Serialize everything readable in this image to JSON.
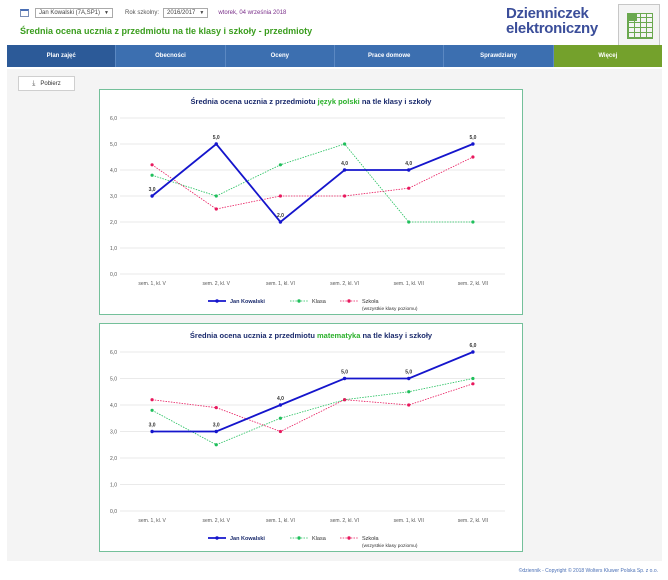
{
  "header": {
    "student_select": "Jan Kowalski (7A,SP1)",
    "year_label": "Rok szkolny:",
    "year_select": "2016/2017",
    "date": "wtorek, 04 września 2018",
    "page_title": "Średnia ocena ucznia z przedmiotu na tle klasy i szkoły - przedmioty",
    "logo_line1": "Dzienniczek",
    "logo_line2": "elektroniczny"
  },
  "nav": {
    "items": [
      {
        "label": "Plan zajęć"
      },
      {
        "label": "Obecności"
      },
      {
        "label": "Oceny"
      },
      {
        "label": "Prace domowe"
      },
      {
        "label": "Sprawdziany"
      },
      {
        "label": "Więcej"
      }
    ]
  },
  "toolbar": {
    "download_label": "Pobierz"
  },
  "colors": {
    "student": "#1515cc",
    "class": "#1fbf5b",
    "school": "#e8185d",
    "subject": "#2ab02a"
  },
  "charts": [
    {
      "title_prefix": "Średnia ocena ucznia z przedmiotu ",
      "subject": "język polski",
      "title_suffix": " na tle klasy i szkoły"
    },
    {
      "title_prefix": "Średnia ocena ucznia z przedmiotu ",
      "subject": "matematyka",
      "title_suffix": " na tle klasy i szkoły"
    }
  ],
  "chart_data": [
    {
      "type": "line",
      "title": "Średnia ocena ucznia z przedmiotu język polski na tle klasy i szkoły",
      "categories": [
        "sem. 1, kl. V",
        "sem. 2, kl. V",
        "sem. 1, kl. VI",
        "sem. 2, kl. VI",
        "sem. 1, kl. VII",
        "sem. 2, kl. VII"
      ],
      "ylim": [
        0,
        6
      ],
      "yticks": [
        "0,0",
        "1,0",
        "2,0",
        "3,0",
        "4,0",
        "5,0",
        "6,0"
      ],
      "grid": true,
      "legend": "bottom",
      "series": [
        {
          "name": "Jan Kowalski",
          "values": [
            3.0,
            5.0,
            2.0,
            4.0,
            4.0,
            5.0
          ],
          "labels": [
            "3,0",
            "5,0",
            "2,0",
            "4,0",
            "4,0",
            "5,0"
          ]
        },
        {
          "name": "Klasa",
          "values": [
            3.8,
            3.0,
            4.2,
            5.0,
            2.0,
            2.0
          ]
        },
        {
          "name": "Szkoła",
          "sublabel": "(wszystkie klasy poziomu)",
          "values": [
            4.2,
            2.5,
            3.0,
            3.0,
            3.3,
            4.5
          ]
        }
      ]
    },
    {
      "type": "line",
      "title": "Średnia ocena ucznia z przedmiotu matematyka na tle klasy i szkoły",
      "categories": [
        "sem. 1, kl. V",
        "sem. 2, kl. V",
        "sem. 1, kl. VI",
        "sem. 2, kl. VI",
        "sem. 1, kl. VII",
        "sem. 2, kl. VII"
      ],
      "ylim": [
        0,
        6
      ],
      "yticks": [
        "0,0",
        "1,0",
        "2,0",
        "3,0",
        "4,0",
        "5,0",
        "6,0"
      ],
      "grid": true,
      "legend": "bottom",
      "series": [
        {
          "name": "Jan Kowalski",
          "values": [
            3.0,
            3.0,
            4.0,
            5.0,
            5.0,
            6.0
          ],
          "labels": [
            "3,0",
            "3,0",
            "4,0",
            "5,0",
            "5,0",
            "6,0"
          ]
        },
        {
          "name": "Klasa",
          "values": [
            3.8,
            2.5,
            3.5,
            4.2,
            4.5,
            5.0
          ]
        },
        {
          "name": "Szkoła",
          "sublabel": "(wszystkie klasy poziomu)",
          "values": [
            4.2,
            3.9,
            3.0,
            4.2,
            4.0,
            4.8
          ]
        }
      ]
    }
  ],
  "footer": {
    "text": "©dziennik - Copyright © 2018 Wolters Kluwer Polska Sp. z o.o."
  }
}
